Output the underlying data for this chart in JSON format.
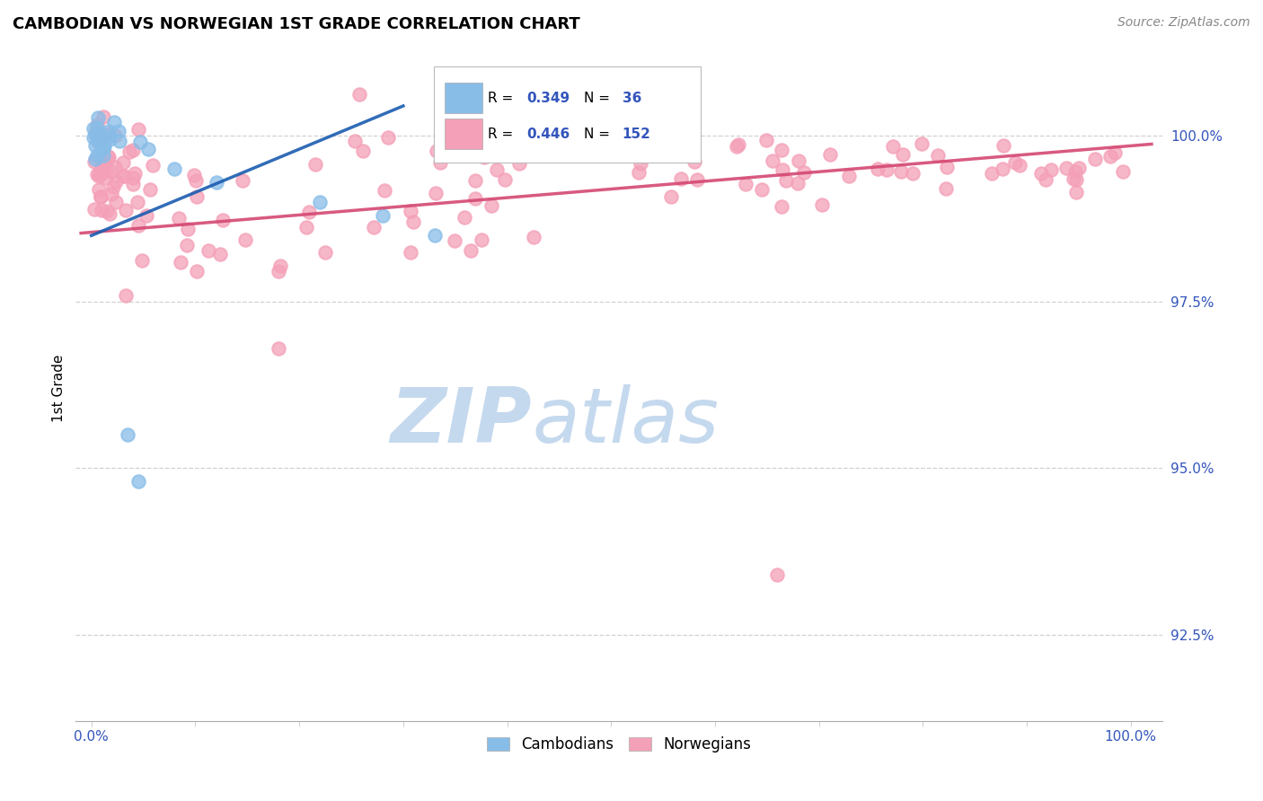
{
  "title": "CAMBODIAN VS NORWEGIAN 1ST GRADE CORRELATION CHART",
  "source_text": "Source: ZipAtlas.com",
  "ylabel": "1st Grade",
  "x_tick_positions": [
    0,
    10,
    20,
    30,
    40,
    50,
    60,
    70,
    80,
    90,
    100
  ],
  "x_tick_labels": [
    "0.0%",
    "",
    "",
    "",
    "",
    "",
    "",
    "",
    "",
    "",
    "100.0%"
  ],
  "y_tick_positions": [
    92.5,
    95.0,
    97.5,
    100.0
  ],
  "y_tick_labels": [
    "92.5%",
    "95.0%",
    "97.5%",
    "100.0%"
  ],
  "xlim": [
    -1.5,
    103
  ],
  "ylim": [
    91.2,
    101.2
  ],
  "cambodian_color": "#88bde8",
  "norwegian_color": "#f4a0b8",
  "cambodian_line_color": "#1a5cb0",
  "norwegian_line_color": "#d44872",
  "R_cambodian": "0.349",
  "N_cambodian": "36",
  "R_norwegian": "0.446",
  "N_norwegian": "152",
  "watermark_zip": "ZIP",
  "watermark_atlas": "atlas",
  "watermark_color_zip": "#c5d9ee",
  "watermark_color_atlas": "#c5d9ee",
  "legend_label_cambodian": "Cambodians",
  "legend_label_norwegian": "Norwegians",
  "title_fontsize": 13,
  "tick_color": "#3355bb",
  "tick_fontsize": 11,
  "ylabel_fontsize": 11,
  "source_fontsize": 10
}
